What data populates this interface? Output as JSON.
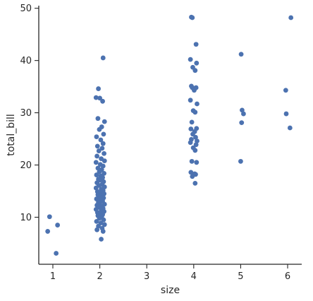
{
  "chart_data": {
    "type": "scatter",
    "style": "strip",
    "xlabel": "size",
    "ylabel": "total_bill",
    "xlim": [
      0.7,
      6.3
    ],
    "ylim": [
      1,
      50.5
    ],
    "xticks": [
      1,
      2,
      3,
      4,
      5,
      6
    ],
    "yticks": [
      10,
      20,
      30,
      40,
      50
    ],
    "grid": false,
    "point_color": "#4c72b0",
    "points": [
      {
        "x": 0.93,
        "y": 10.1
      },
      {
        "x": 0.89,
        "y": 7.3
      },
      {
        "x": 1.1,
        "y": 8.5
      },
      {
        "x": 1.07,
        "y": 3.1
      },
      {
        "x": 2.07,
        "y": 40.5
      },
      {
        "x": 1.97,
        "y": 34.6
      },
      {
        "x": 1.92,
        "y": 32.9
      },
      {
        "x": 2.0,
        "y": 32.8
      },
      {
        "x": 2.06,
        "y": 32.2
      },
      {
        "x": 2.1,
        "y": 28.3
      },
      {
        "x": 1.96,
        "y": 28.9
      },
      {
        "x": 2.04,
        "y": 27.3
      },
      {
        "x": 1.99,
        "y": 26.8
      },
      {
        "x": 2.08,
        "y": 25.9
      },
      {
        "x": 1.93,
        "y": 25.4
      },
      {
        "x": 2.02,
        "y": 24.8
      },
      {
        "x": 2.07,
        "y": 24.1
      },
      {
        "x": 1.95,
        "y": 23.6
      },
      {
        "x": 2.05,
        "y": 23.2
      },
      {
        "x": 1.98,
        "y": 22.7
      },
      {
        "x": 2.09,
        "y": 22.2
      },
      {
        "x": 1.94,
        "y": 21.7
      },
      {
        "x": 2.03,
        "y": 21.2
      },
      {
        "x": 2.1,
        "y": 20.8
      },
      {
        "x": 1.92,
        "y": 20.5
      },
      {
        "x": 2.01,
        "y": 20.1
      },
      {
        "x": 2.07,
        "y": 19.8
      },
      {
        "x": 1.96,
        "y": 19.4
      },
      {
        "x": 2.04,
        "y": 19.1
      },
      {
        "x": 1.99,
        "y": 18.7
      },
      {
        "x": 2.09,
        "y": 18.4
      },
      {
        "x": 1.93,
        "y": 18.1
      },
      {
        "x": 2.02,
        "y": 17.9
      },
      {
        "x": 2.06,
        "y": 17.6
      },
      {
        "x": 1.97,
        "y": 17.3
      },
      {
        "x": 2.0,
        "y": 17.1
      },
      {
        "x": 2.08,
        "y": 16.8
      },
      {
        "x": 1.94,
        "y": 16.6
      },
      {
        "x": 2.05,
        "y": 16.3
      },
      {
        "x": 1.98,
        "y": 16.1
      },
      {
        "x": 2.1,
        "y": 15.8
      },
      {
        "x": 1.92,
        "y": 15.6
      },
      {
        "x": 2.03,
        "y": 15.4
      },
      {
        "x": 2.07,
        "y": 15.1
      },
      {
        "x": 1.95,
        "y": 14.9
      },
      {
        "x": 2.01,
        "y": 14.7
      },
      {
        "x": 2.09,
        "y": 14.5
      },
      {
        "x": 1.96,
        "y": 14.3
      },
      {
        "x": 2.04,
        "y": 14.1
      },
      {
        "x": 1.99,
        "y": 13.9
      },
      {
        "x": 2.08,
        "y": 13.7
      },
      {
        "x": 1.93,
        "y": 13.5
      },
      {
        "x": 2.02,
        "y": 13.3
      },
      {
        "x": 2.06,
        "y": 13.1
      },
      {
        "x": 1.97,
        "y": 12.9
      },
      {
        "x": 2.0,
        "y": 12.7
      },
      {
        "x": 2.1,
        "y": 12.5
      },
      {
        "x": 1.94,
        "y": 12.3
      },
      {
        "x": 2.05,
        "y": 12.1
      },
      {
        "x": 1.98,
        "y": 11.9
      },
      {
        "x": 2.07,
        "y": 11.7
      },
      {
        "x": 1.92,
        "y": 11.5
      },
      {
        "x": 2.03,
        "y": 11.3
      },
      {
        "x": 2.09,
        "y": 11.1
      },
      {
        "x": 1.95,
        "y": 10.9
      },
      {
        "x": 2.01,
        "y": 10.7
      },
      {
        "x": 2.06,
        "y": 10.5
      },
      {
        "x": 1.96,
        "y": 10.3
      },
      {
        "x": 2.04,
        "y": 10.1
      },
      {
        "x": 1.99,
        "y": 9.8
      },
      {
        "x": 2.08,
        "y": 9.5
      },
      {
        "x": 1.93,
        "y": 9.2
      },
      {
        "x": 2.02,
        "y": 8.9
      },
      {
        "x": 2.1,
        "y": 8.6
      },
      {
        "x": 1.97,
        "y": 8.3
      },
      {
        "x": 2.05,
        "y": 7.9
      },
      {
        "x": 1.94,
        "y": 7.6
      },
      {
        "x": 2.07,
        "y": 7.3
      },
      {
        "x": 2.03,
        "y": 5.8
      },
      {
        "x": 3.95,
        "y": 48.3
      },
      {
        "x": 3.97,
        "y": 48.2
      },
      {
        "x": 4.05,
        "y": 43.1
      },
      {
        "x": 3.93,
        "y": 40.2
      },
      {
        "x": 4.06,
        "y": 39.5
      },
      {
        "x": 3.98,
        "y": 38.7
      },
      {
        "x": 4.03,
        "y": 38.1
      },
      {
        "x": 3.95,
        "y": 35.1
      },
      {
        "x": 3.97,
        "y": 34.8
      },
      {
        "x": 4.05,
        "y": 34.8
      },
      {
        "x": 4.01,
        "y": 34.3
      },
      {
        "x": 3.93,
        "y": 32.4
      },
      {
        "x": 4.07,
        "y": 31.7
      },
      {
        "x": 3.99,
        "y": 30.4
      },
      {
        "x": 4.03,
        "y": 30.1
      },
      {
        "x": 3.96,
        "y": 28.2
      },
      {
        "x": 4.06,
        "y": 27.0
      },
      {
        "x": 3.94,
        "y": 26.9
      },
      {
        "x": 4.02,
        "y": 26.4
      },
      {
        "x": 3.98,
        "y": 25.9
      },
      {
        "x": 4.04,
        "y": 25.3
      },
      {
        "x": 3.95,
        "y": 24.9
      },
      {
        "x": 4.07,
        "y": 24.6
      },
      {
        "x": 3.93,
        "y": 24.3
      },
      {
        "x": 4.05,
        "y": 23.9
      },
      {
        "x": 3.99,
        "y": 23.3
      },
      {
        "x": 4.03,
        "y": 22.8
      },
      {
        "x": 3.96,
        "y": 20.7
      },
      {
        "x": 4.06,
        "y": 20.5
      },
      {
        "x": 3.94,
        "y": 18.6
      },
      {
        "x": 4.02,
        "y": 18.3
      },
      {
        "x": 3.97,
        "y": 17.8
      },
      {
        "x": 4.04,
        "y": 18.2
      },
      {
        "x": 4.03,
        "y": 16.5
      },
      {
        "x": 5.01,
        "y": 41.2
      },
      {
        "x": 5.03,
        "y": 30.5
      },
      {
        "x": 5.06,
        "y": 29.8
      },
      {
        "x": 5.02,
        "y": 28.1
      },
      {
        "x": 5.0,
        "y": 20.7
      },
      {
        "x": 6.07,
        "y": 48.2
      },
      {
        "x": 5.96,
        "y": 34.3
      },
      {
        "x": 5.97,
        "y": 29.8
      },
      {
        "x": 6.05,
        "y": 27.1
      }
    ]
  }
}
